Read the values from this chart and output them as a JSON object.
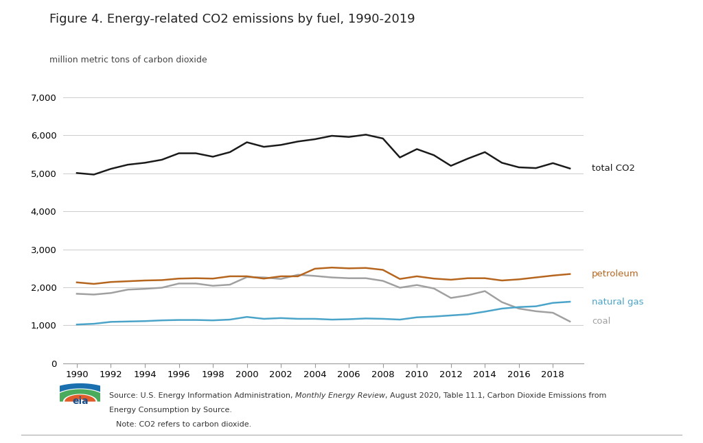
{
  "title": "Figure 4. Energy-related CO2 emissions by fuel, 1990-2019",
  "ylabel": "million metric tons of carbon dioxide",
  "years": [
    1990,
    1991,
    1992,
    1993,
    1994,
    1995,
    1996,
    1997,
    1998,
    1999,
    2000,
    2001,
    2002,
    2003,
    2004,
    2005,
    2006,
    2007,
    2008,
    2009,
    2010,
    2011,
    2012,
    2013,
    2014,
    2015,
    2016,
    2017,
    2018,
    2019
  ],
  "total_co2": [
    5010,
    4970,
    5120,
    5230,
    5280,
    5360,
    5530,
    5530,
    5440,
    5560,
    5820,
    5700,
    5750,
    5840,
    5900,
    5990,
    5960,
    6020,
    5920,
    5420,
    5640,
    5480,
    5200,
    5390,
    5560,
    5280,
    5160,
    5140,
    5270,
    5130
  ],
  "petroleum": [
    2130,
    2090,
    2140,
    2160,
    2180,
    2190,
    2230,
    2240,
    2230,
    2290,
    2290,
    2230,
    2290,
    2290,
    2490,
    2520,
    2500,
    2510,
    2460,
    2220,
    2290,
    2230,
    2200,
    2240,
    2240,
    2180,
    2210,
    2260,
    2310,
    2350
  ],
  "natural_gas": [
    1020,
    1040,
    1090,
    1100,
    1110,
    1130,
    1140,
    1140,
    1130,
    1150,
    1220,
    1170,
    1190,
    1170,
    1170,
    1150,
    1160,
    1180,
    1170,
    1150,
    1210,
    1230,
    1260,
    1290,
    1360,
    1440,
    1480,
    1500,
    1590,
    1620
  ],
  "coal": [
    1830,
    1810,
    1850,
    1940,
    1960,
    1990,
    2100,
    2100,
    2040,
    2070,
    2270,
    2260,
    2220,
    2330,
    2300,
    2260,
    2240,
    2240,
    2170,
    1990,
    2060,
    1970,
    1720,
    1790,
    1900,
    1610,
    1440,
    1370,
    1330,
    1100
  ],
  "total_co2_color": "#1a1a1a",
  "petroleum_color": "#b5651d",
  "natural_gas_color": "#4aa3c8",
  "coal_color": "#a0a0a0",
  "background_color": "#ffffff",
  "grid_color": "#cccccc",
  "ylim": [
    0,
    7000
  ],
  "yticks": [
    0,
    1000,
    2000,
    3000,
    4000,
    5000,
    6000,
    7000
  ],
  "xticks": [
    1990,
    1992,
    1994,
    1996,
    1998,
    2000,
    2002,
    2004,
    2006,
    2008,
    2010,
    2012,
    2014,
    2016,
    2018
  ],
  "label_total": "total CO2",
  "label_petroleum": "petroleum",
  "label_natural_gas": "natural gas",
  "label_coal": "coal",
  "line_width": 1.8,
  "source_pre": "Source: U.S. Energy Information Administration, ",
  "source_italic": "Monthly Energy Review",
  "source_post": ", August 2020, Table 11.1, Carbon Dioxide Emissions from",
  "source_line2": "Energy Consumption by Source.",
  "source_line3": "Note: CO2 refers to carbon dioxide."
}
